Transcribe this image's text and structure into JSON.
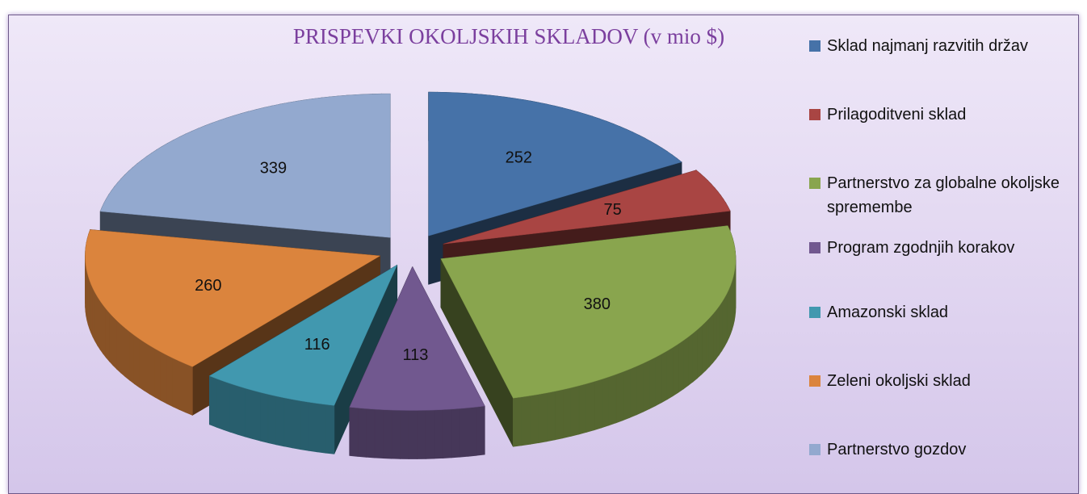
{
  "chart_data": {
    "type": "pie3d",
    "title": "PRISPEVKI OKOLJSKIH SKLADOV (v mio $)",
    "categories": [
      "Sklad najmanj razvitih držav",
      "Prilagoditveni sklad",
      "Partnerstvo za globalne okoljske spremembe",
      "Program zgodnjih korakov",
      "Amazonski sklad",
      "Zeleni okoljski sklad",
      "Partnerstvo gozdov"
    ],
    "values": [
      252,
      75,
      380,
      113,
      116,
      260,
      339
    ],
    "colors": [
      "#4672a8",
      "#a94543",
      "#89a54e",
      "#71588f",
      "#4198af",
      "#db843d",
      "#93a9cf"
    ],
    "legend": "right"
  }
}
